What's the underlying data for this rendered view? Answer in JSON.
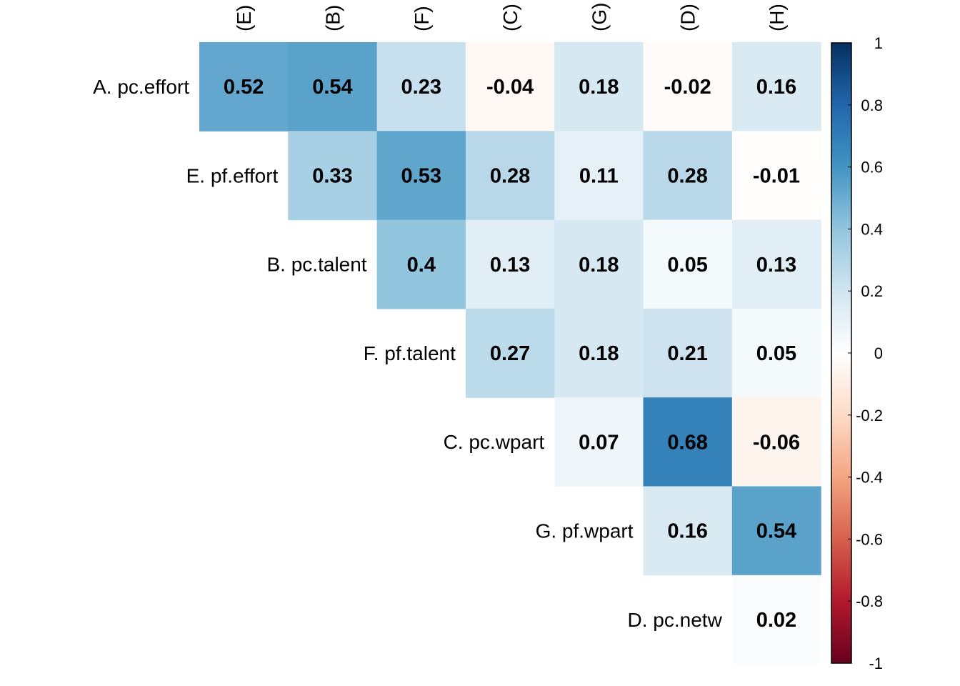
{
  "chart_data": {
    "type": "heatmap",
    "layout": "upper-triangular correlation matrix",
    "row_labels": [
      "A. pc.effort",
      "E. pf.effort",
      "B. pc.talent",
      "F. pf.talent",
      "C. pc.wpart",
      "G. pf.wpart",
      "D. pc.netw"
    ],
    "col_labels": [
      "(E)",
      "(B)",
      "(F)",
      "(C)",
      "(G)",
      "(D)",
      "(H)"
    ],
    "values": [
      [
        0.52,
        0.54,
        0.23,
        -0.04,
        0.18,
        -0.02,
        0.16
      ],
      [
        null,
        0.33,
        0.53,
        0.28,
        0.11,
        0.28,
        -0.01
      ],
      [
        null,
        null,
        0.4,
        0.13,
        0.18,
        0.05,
        0.13
      ],
      [
        null,
        null,
        null,
        0.27,
        0.18,
        0.21,
        0.05
      ],
      [
        null,
        null,
        null,
        null,
        0.07,
        0.68,
        -0.06
      ],
      [
        null,
        null,
        null,
        null,
        null,
        0.16,
        0.54
      ],
      [
        null,
        null,
        null,
        null,
        null,
        null,
        0.02
      ]
    ],
    "value_labels": [
      [
        "0.52",
        "0.54",
        "0.23",
        "-0.04",
        "0.18",
        "-0.02",
        "0.16"
      ],
      [
        null,
        "0.33",
        "0.53",
        "0.28",
        "0.11",
        "0.28",
        "-0.01"
      ],
      [
        null,
        null,
        "0.4",
        "0.13",
        "0.18",
        "0.05",
        "0.13"
      ],
      [
        null,
        null,
        null,
        "0.27",
        "0.18",
        "0.21",
        "0.05"
      ],
      [
        null,
        null,
        null,
        null,
        "0.07",
        "0.68",
        "-0.06"
      ],
      [
        null,
        null,
        null,
        null,
        null,
        "0.16",
        "0.54"
      ],
      [
        null,
        null,
        null,
        null,
        null,
        null,
        "0.02"
      ]
    ],
    "color_scale": {
      "range": [
        -1,
        1
      ],
      "palette": "red-white-blue",
      "stops": [
        "#67001F",
        "#B2182B",
        "#D6604D",
        "#F4A582",
        "#FDDBC7",
        "#FFFFFF",
        "#D1E5F0",
        "#92C5DE",
        "#4393C3",
        "#2166AC",
        "#053061"
      ],
      "ticks": [
        "1",
        "0.8",
        "0.6",
        "0.4",
        "0.2",
        "0",
        "-0.2",
        "-0.4",
        "-0.6",
        "-0.8",
        "-1"
      ]
    },
    "legend_position": "right",
    "title": "",
    "xlabel": "",
    "ylabel": ""
  }
}
